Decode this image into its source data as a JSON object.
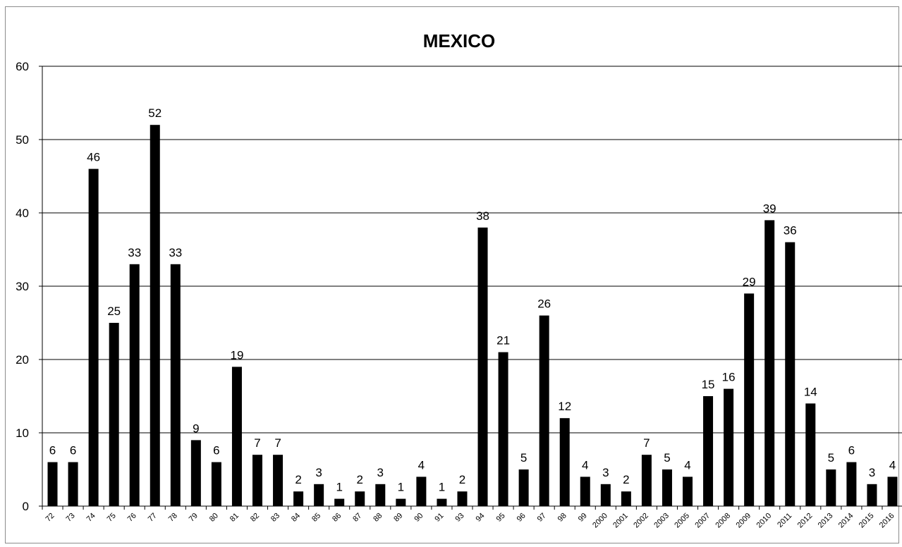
{
  "chart_data": {
    "type": "bar",
    "title": "MEXICO",
    "xlabel": "",
    "ylabel": "",
    "ylim": [
      0,
      60
    ],
    "yticks": [
      0,
      10,
      20,
      30,
      40,
      50,
      60
    ],
    "grid": true,
    "legend": "none",
    "colors": {
      "bar": "#000000",
      "grid": "#000000",
      "axis": "#000000"
    },
    "categories": [
      "72",
      "73",
      "74",
      "75",
      "76",
      "77",
      "78",
      "79",
      "80",
      "81",
      "82",
      "83",
      "84",
      "85",
      "86",
      "87",
      "88",
      "89",
      "90",
      "91",
      "93",
      "94",
      "95",
      "96",
      "97",
      "98",
      "99",
      "2000",
      "2001",
      "2002",
      "2003",
      "2005",
      "2007",
      "2008",
      "2009",
      "2010",
      "2011",
      "2012",
      "2013",
      "2014",
      "2015",
      "2016"
    ],
    "values": [
      6,
      6,
      46,
      25,
      33,
      52,
      33,
      9,
      6,
      19,
      7,
      7,
      2,
      3,
      1,
      2,
      3,
      1,
      4,
      1,
      2,
      38,
      21,
      5,
      26,
      12,
      4,
      3,
      2,
      7,
      5,
      4,
      15,
      16,
      29,
      39,
      36,
      14,
      5,
      6,
      3,
      4
    ]
  }
}
